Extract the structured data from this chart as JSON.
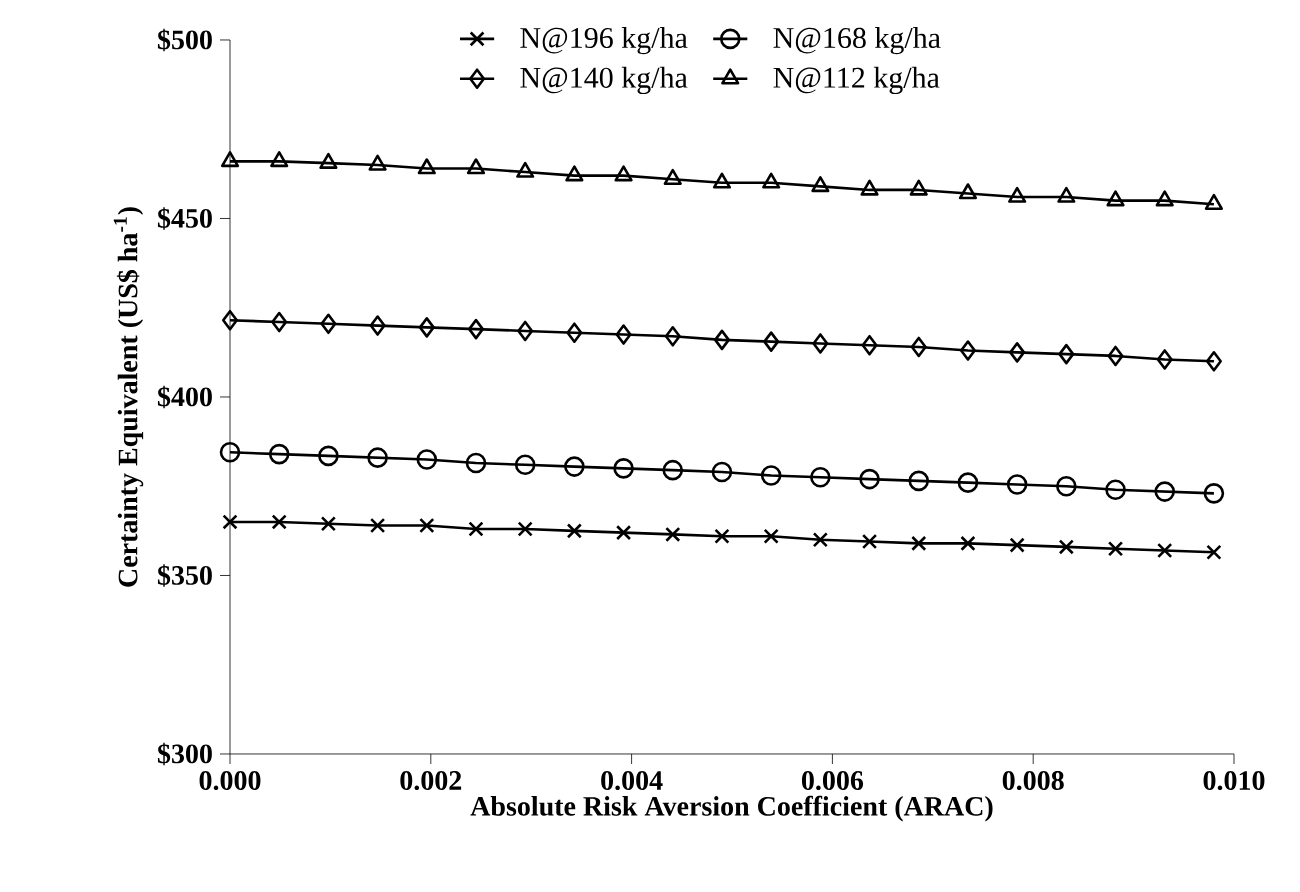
{
  "chart_data": {
    "type": "line",
    "xlabel": "Absolute Risk Aversion Coefficient (ARAC)",
    "ylabel": "Certainty Equivalent (US$ ha$^{-1}$)",
    "x": [
      0,
      0.00049,
      0.00098,
      0.00147,
      0.00196,
      0.00245,
      0.00294,
      0.00343,
      0.00392,
      0.00441,
      0.0049,
      0.00539,
      0.00588,
      0.00637,
      0.00686,
      0.00735,
      0.00784,
      0.00833,
      0.00882,
      0.00931,
      0.0098
    ],
    "series": [
      {
        "name": "N@196 kg/ha",
        "color": "#000000",
        "marker": "cross",
        "values": [
          365,
          365,
          364.5,
          364,
          364,
          363,
          363,
          362.5,
          362,
          361.5,
          361,
          361,
          360,
          359.5,
          359,
          359,
          358.5,
          358,
          357.5,
          357,
          356.5
        ]
      },
      {
        "name": "N@168 kg/ha",
        "color": "#000000",
        "marker": "circle",
        "values": [
          384.5,
          384,
          383.5,
          383,
          382.5,
          381.5,
          381,
          380.5,
          380,
          379.5,
          379,
          378,
          377.5,
          377,
          376.5,
          376,
          375.5,
          375,
          374,
          373.5,
          373
        ]
      },
      {
        "name": "N@140 kg/ha",
        "color": "#000000",
        "marker": "diamond",
        "values": [
          421.5,
          421,
          420.5,
          420,
          419.5,
          419,
          418.5,
          418,
          417.5,
          417,
          416,
          415.5,
          415,
          414.5,
          414,
          413,
          412.5,
          412,
          411.5,
          410.5,
          410
        ]
      },
      {
        "name": "N@112 kg/ha",
        "color": "#000000",
        "marker": "triangle",
        "values": [
          466,
          466,
          465.5,
          465,
          464,
          464,
          463,
          462,
          462,
          461,
          460,
          460,
          459,
          458,
          458,
          457,
          456,
          456,
          455,
          455,
          454
        ]
      }
    ],
    "xlim": [
      0,
      0.01
    ],
    "ylim": [
      300,
      500
    ],
    "xticks": [
      {
        "value": 0,
        "label": "0.000"
      },
      {
        "value": 0.002,
        "label": "0.002"
      },
      {
        "value": 0.004,
        "label": "0.004"
      },
      {
        "value": 0.006,
        "label": "0.006"
      },
      {
        "value": 0.008,
        "label": "0.008"
      },
      {
        "value": 0.01,
        "label": "0.010"
      }
    ],
    "yticks": [
      {
        "value": 300,
        "label": "$300"
      },
      {
        "value": 350,
        "label": "$350"
      },
      {
        "value": 400,
        "label": "$400"
      },
      {
        "value": 450,
        "label": "$450"
      },
      {
        "value": 500,
        "label": "$500"
      }
    ],
    "grid": false,
    "legend": "top",
    "line_style": "solid"
  }
}
